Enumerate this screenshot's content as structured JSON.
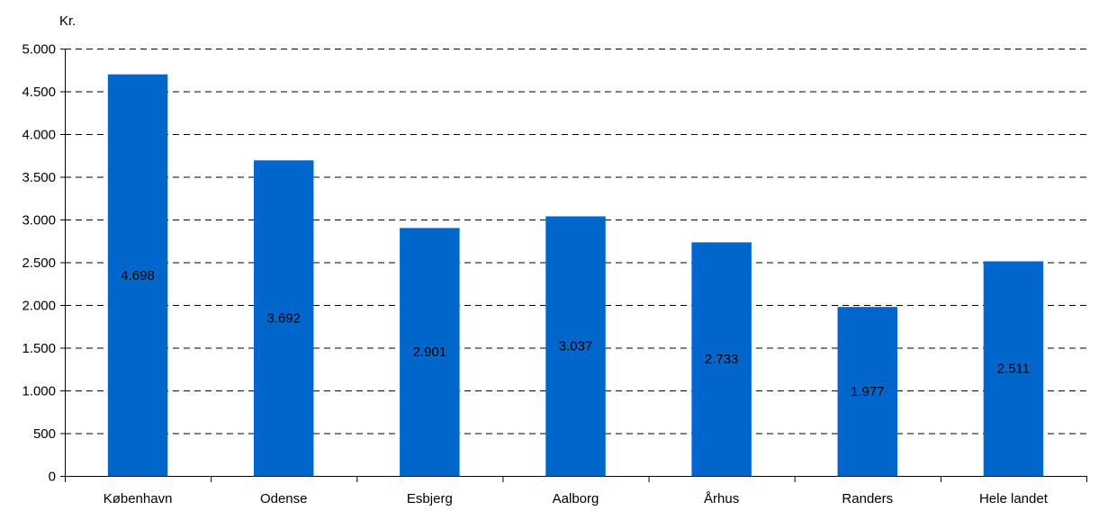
{
  "chart_data": {
    "type": "bar",
    "ylabel": "Kr.",
    "categories": [
      "København",
      "Odense",
      "Esbjerg",
      "Aalborg",
      "Århus",
      "Randers",
      "Hele landet"
    ],
    "values": [
      4698,
      3692,
      2901,
      3037,
      2733,
      1977,
      2511
    ],
    "data_labels": [
      "4.698",
      "3.692",
      "2.901",
      "3.037",
      "2.733",
      "1.977",
      "2.511"
    ],
    "y_ticks": [
      0,
      500,
      1000,
      1500,
      2000,
      2500,
      3000,
      3500,
      4000,
      4500,
      5000
    ],
    "y_tick_labels": [
      "0",
      "500",
      "1.000",
      "1.500",
      "2.000",
      "2.500",
      "3.000",
      "3.500",
      "4.000",
      "4.500",
      "5.000"
    ],
    "ylim": [
      0,
      5000
    ],
    "grid": "horizontal dashed",
    "legend": "none",
    "bar_color": "#0066CC",
    "grid_color": "#000000"
  }
}
